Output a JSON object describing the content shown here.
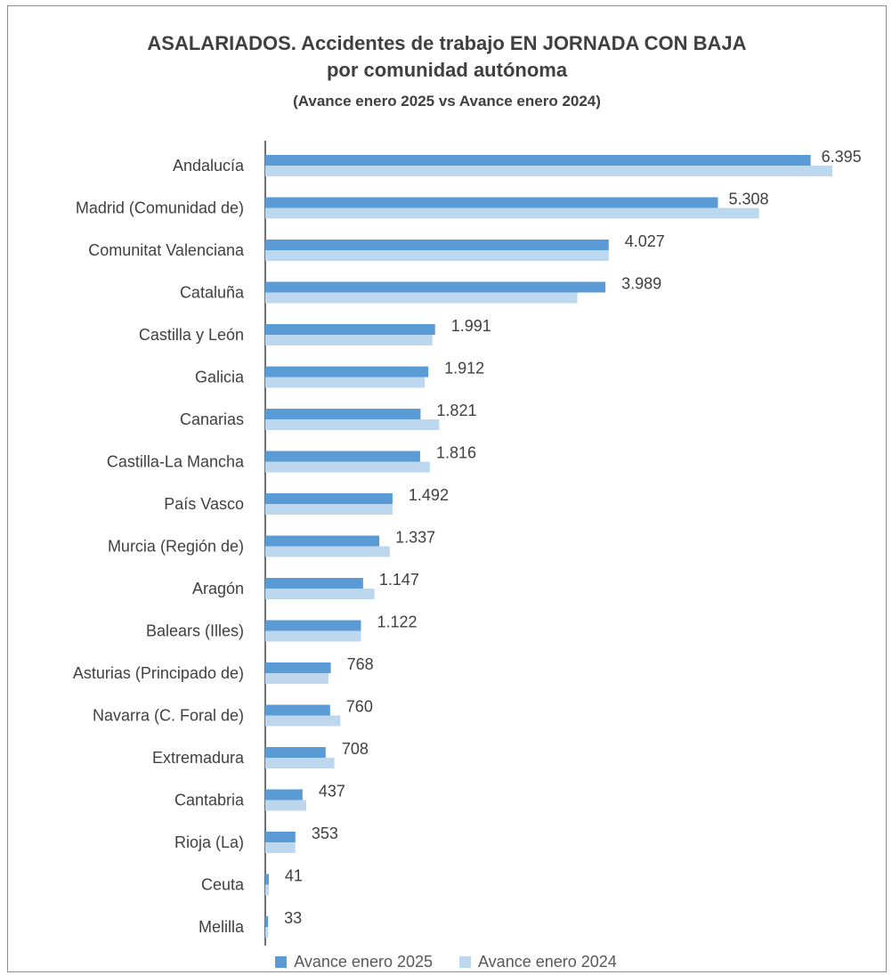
{
  "chart_data": {
    "type": "bar",
    "orientation": "horizontal",
    "title": "ASALARIADOS. Accidentes de trabajo EN JORNADA CON BAJA",
    "title_line2": "por comunidad autónoma",
    "subtitle": "(Avance enero 2025 vs Avance enero 2024)",
    "categories": [
      "Andalucía",
      "Madrid (Comunidad de)",
      "Comunitat Valenciana",
      "Cataluña",
      "Castilla y León",
      "Galicia",
      "Canarias",
      "Castilla-La Mancha",
      "País Vasco",
      "Murcia (Región de)",
      "Aragón",
      "Balears (Illes)",
      "Asturias (Principado de)",
      "Navarra (C. Foral de)",
      "Extremadura",
      "Cantabria",
      "Rioja (La)",
      "Ceuta",
      "Melilla"
    ],
    "series": [
      {
        "name": "Avance enero 2025",
        "color": "#5b9bd5",
        "values": [
          6395,
          5308,
          4027,
          3989,
          1991,
          1912,
          1821,
          1816,
          1492,
          1337,
          1147,
          1122,
          768,
          760,
          708,
          437,
          353,
          41,
          33
        ]
      },
      {
        "name": "Avance enero 2024",
        "color": "#bdd7ee",
        "values": [
          6650,
          5790,
          4027,
          3660,
          1960,
          1870,
          2040,
          1930,
          1492,
          1460,
          1280,
          1122,
          740,
          880,
          810,
          480,
          353,
          41,
          33
        ]
      }
    ],
    "data_labels": [
      "6.395",
      "5.308",
      "4.027",
      "3.989",
      "1.991",
      "1.912",
      "1.821",
      "1.816",
      "1.492",
      "1.337",
      "1.147",
      "1.122",
      "768",
      "760",
      "708",
      "437",
      "353",
      "41",
      "33"
    ],
    "legend_position": "bottom",
    "grid": false
  }
}
